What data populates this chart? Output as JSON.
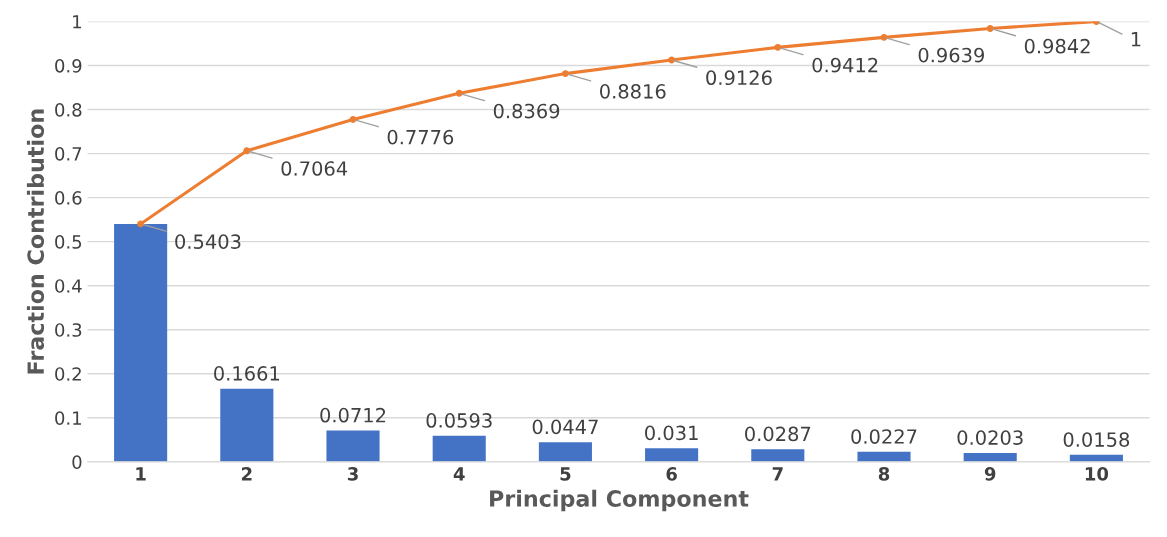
{
  "chart_data": {
    "type": "bar",
    "xlabel": "Principal Component",
    "ylabel": "Fraction Contribution",
    "categories": [
      "1",
      "2",
      "3",
      "4",
      "5",
      "6",
      "7",
      "8",
      "9",
      "10"
    ],
    "series": [
      {
        "color": "#4472c4",
        "values": [
          0.54,
          0.1661,
          0.0712,
          0.0593,
          0.0447,
          0.031,
          0.0287,
          0.0227,
          0.0203,
          0.0158
        ],
        "value_labels": [
          null,
          "0.1661",
          "0.0712",
          "0.0593",
          "0.0447",
          "0.031",
          "0.0287",
          "0.0227",
          "0.0203",
          "0.0158"
        ]
      },
      {
        "type": "line",
        "color": "#ed7d31",
        "marker": "circle",
        "values": [
          0.5403,
          0.7064,
          0.7776,
          0.8369,
          0.8816,
          0.9126,
          0.9412,
          0.9639,
          0.9842,
          1
        ],
        "value_labels": [
          "0.5403",
          "0.7064",
          "0.7776",
          "0.8369",
          "0.8816",
          "0.9126",
          "0.9412",
          "0.9639",
          "0.9842",
          "1"
        ]
      }
    ],
    "ylim": [
      0,
      1
    ],
    "yticks": [
      0,
      0.1,
      0.2,
      0.3,
      0.4,
      0.5,
      0.6,
      0.7,
      0.8,
      0.9,
      1
    ],
    "grid": "y"
  }
}
